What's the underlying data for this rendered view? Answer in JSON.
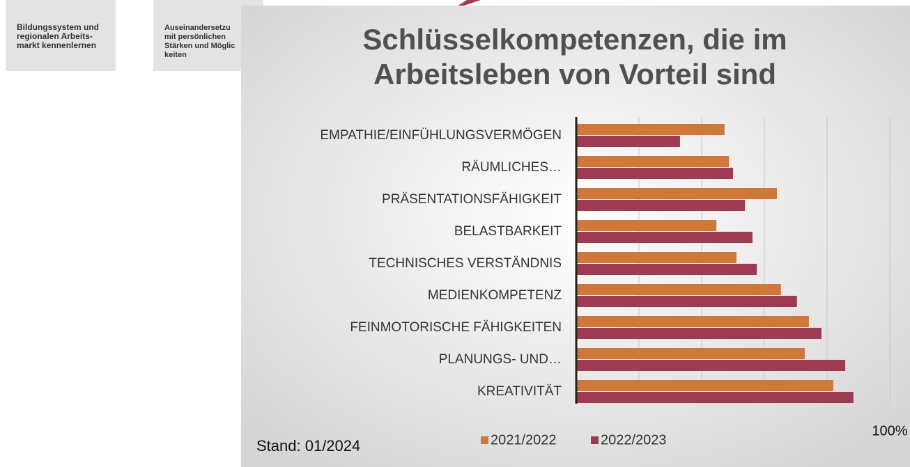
{
  "tiles": [
    {
      "lines": [
        "Bildungssystem und",
        "regionalen Arbeits-",
        "markt kennenlernen"
      ]
    },
    {
      "lines": [
        "Auseinandersetzu",
        "mit persönlichen",
        "Stärken und Möglic",
        "keiten"
      ]
    }
  ],
  "chart_data": {
    "type": "bar",
    "orientation": "horizontal",
    "title": [
      "Schlüsselkompetenzen, die im",
      "Arbeitsleben von Vorteil sind"
    ],
    "categories": [
      "EMPATHIE/EINFÜHLUNGSVERMÖGEN",
      "RÄUMLICHES…",
      "PRÄSENTATIONSFÄHIGKEIT",
      "BELASTBARKEIT",
      "TECHNISCHES VERSTÄNDNIS",
      "MEDIENKOMPETENZ",
      "FEINMOTORISCHE FÄHIGKEITEN",
      "PLANUNGS- UND…",
      "KREATIVITÄT"
    ],
    "series": [
      {
        "name": "2021/2022",
        "color": "#d0773c",
        "values": [
          47.3,
          48.7,
          64,
          44.7,
          51.1,
          65.3,
          74.2,
          72.9,
          82
        ]
      },
      {
        "name": "2022/2023",
        "color": "#9e3a52",
        "values": [
          33.1,
          50,
          53.8,
          56.2,
          57.6,
          70.4,
          78.2,
          85.8,
          88.4
        ]
      }
    ],
    "xlim": [
      0,
      100
    ],
    "xticks": [
      {
        "value": 100,
        "label": "100%"
      }
    ],
    "grid_lines": [
      20,
      40,
      60,
      80,
      100
    ],
    "grid": true,
    "legend": "bottom",
    "footnote": "Stand: 01/2024"
  }
}
